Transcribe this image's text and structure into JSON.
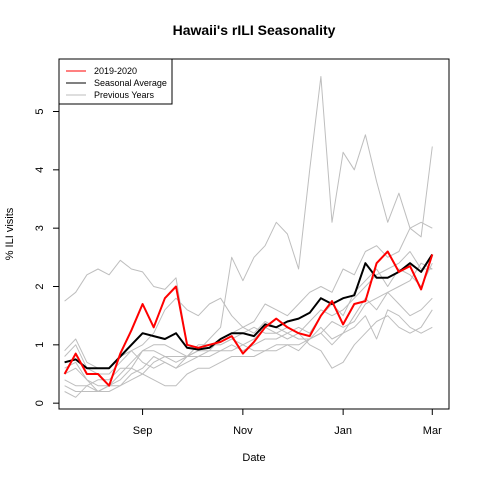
{
  "chart_data": {
    "type": "line",
    "title": "Hawaii's rILI Seasonality",
    "xlabel": "Date",
    "ylabel": "% ILI visits",
    "x_ticks": [
      {
        "label": "Sep",
        "x": 7
      },
      {
        "label": "Nov",
        "x": 16
      },
      {
        "label": "Jan",
        "x": 25
      },
      {
        "label": "Mar",
        "x": 33
      }
    ],
    "xlim": [
      -0.5,
      34.5
    ],
    "ylim": [
      -0.1,
      5.9
    ],
    "y_ticks": [
      0,
      1,
      2,
      3,
      4,
      5
    ],
    "legend": {
      "position": "top-left",
      "entries": [
        {
          "label": "2019-2020",
          "color": "#ff0000"
        },
        {
          "label": "Seasonal Average",
          "color": "#000000"
        },
        {
          "label": "Previous Years",
          "color": "#bebebe"
        }
      ]
    },
    "series": [
      {
        "name": "2019-2020",
        "color": "#ff0000",
        "width": 2,
        "values": [
          0.5,
          0.85,
          0.5,
          0.5,
          0.3,
          0.85,
          1.25,
          1.7,
          1.3,
          1.8,
          2.0,
          1.0,
          0.95,
          1.0,
          1.05,
          1.15,
          0.85,
          1.05,
          1.3,
          1.45,
          1.3,
          1.2,
          1.15,
          1.5,
          1.75,
          1.35,
          1.7,
          1.75,
          2.4,
          2.6,
          2.25,
          2.35,
          1.95,
          2.55
        ]
      },
      {
        "name": "Seasonal Average",
        "color": "#000000",
        "width": 2,
        "values": [
          0.7,
          0.75,
          0.6,
          0.6,
          0.6,
          0.8,
          1.0,
          1.2,
          1.15,
          1.1,
          1.2,
          0.95,
          0.92,
          0.95,
          1.1,
          1.2,
          1.2,
          1.15,
          1.35,
          1.3,
          1.4,
          1.45,
          1.55,
          1.8,
          1.7,
          1.8,
          1.85,
          2.4,
          2.15,
          2.15,
          2.25,
          2.4,
          2.25,
          2.55
        ]
      },
      {
        "name": "Previous Years",
        "color": "#bebebe",
        "width": 1,
        "values": [
          1.75,
          1.9,
          2.2,
          2.3,
          2.2,
          2.45,
          2.3,
          2.25,
          2.0,
          1.95,
          2.15,
          1.0,
          0.9,
          1.1,
          1.3,
          2.5,
          2.1,
          2.5,
          2.7,
          3.1,
          2.9,
          2.3,
          4.0,
          5.6,
          3.1,
          4.3,
          4.0,
          4.6,
          3.8,
          3.1,
          3.6,
          3.0,
          2.85,
          4.4
        ]
      },
      {
        "name": "Previous Years",
        "color": "#bebebe",
        "width": 1,
        "values": [
          0.8,
          1.0,
          0.6,
          0.5,
          0.5,
          0.7,
          0.9,
          1.0,
          1.2,
          1.6,
          1.8,
          1.6,
          1.5,
          1.7,
          1.8,
          1.5,
          1.3,
          1.4,
          1.7,
          1.6,
          1.5,
          1.7,
          1.9,
          2.0,
          1.9,
          2.3,
          2.2,
          2.6,
          2.7,
          2.5,
          2.6,
          3.0,
          3.1,
          3.0
        ]
      },
      {
        "name": "Previous Years",
        "color": "#bebebe",
        "width": 1,
        "values": [
          0.6,
          0.7,
          0.4,
          0.3,
          0.3,
          0.5,
          0.7,
          0.9,
          0.9,
          0.8,
          0.7,
          0.8,
          0.9,
          1.0,
          1.0,
          1.1,
          1.2,
          1.3,
          1.2,
          1.2,
          1.3,
          1.2,
          1.4,
          1.6,
          1.5,
          1.6,
          1.8,
          2.0,
          2.2,
          2.3,
          2.4,
          2.6,
          2.3,
          2.3
        ]
      },
      {
        "name": "Previous Years",
        "color": "#bebebe",
        "width": 1,
        "values": [
          0.3,
          0.2,
          0.2,
          0.2,
          0.3,
          0.3,
          0.5,
          0.6,
          0.8,
          0.7,
          0.6,
          0.7,
          0.8,
          0.8,
          0.9,
          0.9,
          1.0,
          0.9,
          0.9,
          0.9,
          1.0,
          0.9,
          1.1,
          1.2,
          1.0,
          1.2,
          1.5,
          1.8,
          1.6,
          1.9,
          1.7,
          1.5,
          1.6,
          1.8
        ]
      },
      {
        "name": "Previous Years",
        "color": "#bebebe",
        "width": 1,
        "values": [
          0.9,
          1.1,
          0.7,
          0.6,
          0.6,
          0.8,
          0.9,
          0.7,
          0.6,
          0.7,
          0.6,
          0.8,
          0.8,
          0.9,
          1.1,
          1.2,
          1.3,
          1.2,
          1.4,
          1.3,
          1.2,
          1.1,
          1.1,
          1.2,
          1.4,
          1.3,
          1.4,
          1.7,
          1.8,
          1.9,
          2.0,
          2.1,
          2.4,
          2.3
        ]
      },
      {
        "name": "Previous Years",
        "color": "#bebebe",
        "width": 1,
        "values": [
          0.4,
          0.3,
          0.3,
          0.4,
          0.4,
          0.6,
          0.6,
          0.5,
          0.7,
          0.8,
          0.8,
          0.8,
          1.0,
          1.0,
          1.0,
          1.1,
          1.0,
          1.1,
          1.3,
          1.2,
          1.1,
          1.2,
          1.0,
          0.9,
          0.6,
          0.7,
          1.0,
          1.2,
          1.4,
          1.5,
          1.3,
          1.2,
          1.3,
          1.6
        ]
      },
      {
        "name": "Previous Years",
        "color": "#bebebe",
        "width": 1,
        "values": [
          0.2,
          0.1,
          0.3,
          0.2,
          0.2,
          0.3,
          0.4,
          0.5,
          0.4,
          0.3,
          0.3,
          0.5,
          0.6,
          0.6,
          0.7,
          0.8,
          0.8,
          0.8,
          0.9,
          1.0,
          1.0,
          1.0,
          1.1,
          1.3,
          1.1,
          1.2,
          1.3,
          1.5,
          1.1,
          1.6,
          1.5,
          1.3,
          1.2,
          1.3
        ]
      },
      {
        "name": "Previous Years",
        "color": "#bebebe",
        "width": 1,
        "values": [
          0.5,
          0.6,
          0.4,
          0.2,
          0.3,
          0.4,
          0.6,
          0.9,
          1.0,
          1.0,
          0.9,
          0.8,
          0.9,
          0.9,
          0.9,
          1.0,
          0.9,
          1.0,
          1.1,
          1.1,
          1.2,
          1.3,
          1.2,
          1.5,
          1.7,
          1.5,
          1.9,
          2.1,
          2.3,
          2.0,
          2.3,
          2.2,
          2.0,
          2.4
        ]
      }
    ]
  }
}
